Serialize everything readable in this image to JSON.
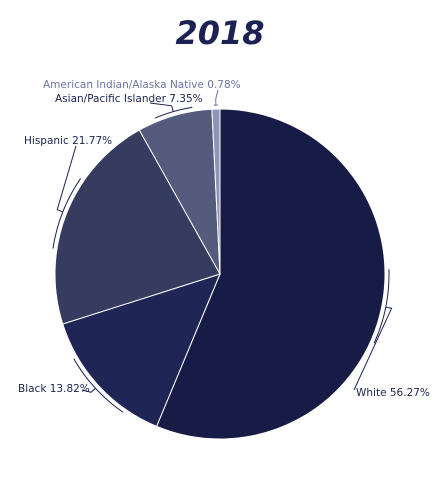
{
  "chart_data": {
    "type": "pie",
    "title": "2018",
    "slices": [
      {
        "label": "White",
        "value": 56.27,
        "display": "White 56.27%",
        "color": "#161c45"
      },
      {
        "label": "Black",
        "value": 13.82,
        "display": "Black 13.82%",
        "color": "#1f2656"
      },
      {
        "label": "Hispanic",
        "value": 21.77,
        "display": "Hispanic 21.77%",
        "color": "#363c5f"
      },
      {
        "label": "Asian/Pacific Islander",
        "value": 7.35,
        "display": "Asian/Pacific Islander 7.35%",
        "color": "#555b7c"
      },
      {
        "label": "American Indian/Alaska Native",
        "value": 0.78,
        "display": "American Indian/Alaska Native 0.78%",
        "color": "#8f93ba"
      }
    ],
    "legend": "none",
    "label_style": "outside with leader lines"
  }
}
